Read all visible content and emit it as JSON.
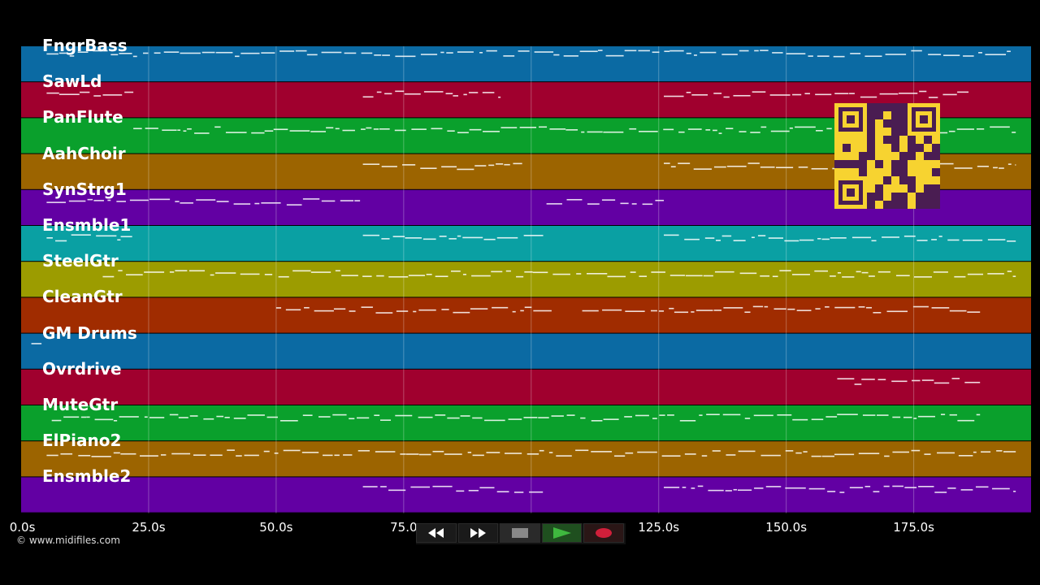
{
  "tracks": [
    {
      "name": "FngrBass",
      "color": "#0b6aa3"
    },
    {
      "name": "SawLd",
      "color": "#a0002e"
    },
    {
      "name": "PanFlute",
      "color": "#0aa02c"
    },
    {
      "name": "AahChoir",
      "color": "#9c6400"
    },
    {
      "name": "SynStrg1",
      "color": "#6200a3"
    },
    {
      "name": "Ensmble1",
      "color": "#0aa0a3"
    },
    {
      "name": "SteelGtr",
      "color": "#9c9c00"
    },
    {
      "name": "CleanGtr",
      "color": "#a02c00"
    },
    {
      "name": "GM Drums",
      "color": "#0b6aa3"
    },
    {
      "name": "Ovrdrive",
      "color": "#a0002e"
    },
    {
      "name": "MuteGtr",
      "color": "#0aa02c"
    },
    {
      "name": "ElPiano2",
      "color": "#9c6400"
    },
    {
      "name": "Ensmble2",
      "color": "#6200a3"
    }
  ],
  "time_axis": {
    "ticks": [
      {
        "seconds": 0,
        "label": "0.0s"
      },
      {
        "seconds": 25,
        "label": "25.0s"
      },
      {
        "seconds": 50,
        "label": "50.0s"
      },
      {
        "seconds": 75,
        "label": "75.0"
      },
      {
        "seconds": 125,
        "label": "125.0s"
      },
      {
        "seconds": 150,
        "label": "150.0s"
      },
      {
        "seconds": 175,
        "label": "175.0s"
      }
    ],
    "duration_seconds": 198
  },
  "copyright": "© www.midifiles.com",
  "transport": {
    "rewind_icon": "rewind-icon",
    "forward_icon": "fast-forward-icon",
    "stop_icon": "stop-icon",
    "play_icon": "play-icon",
    "record_icon": "record-icon",
    "play_color": "#2e8b2e",
    "record_color": "#c8102e"
  },
  "qr_color": "#f7d330"
}
